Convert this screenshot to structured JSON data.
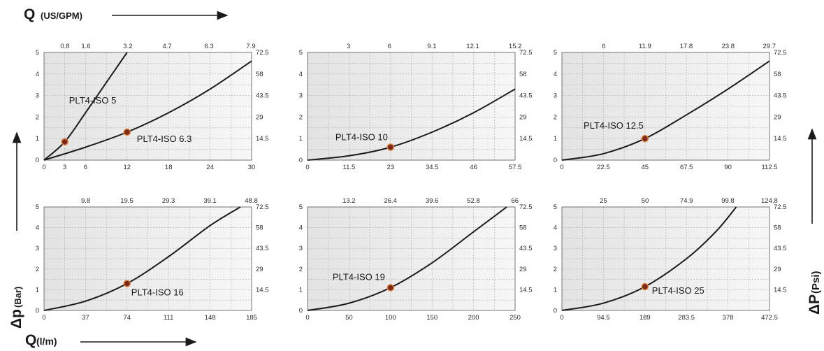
{
  "header": {
    "top_axis_label": "Q",
    "top_axis_unit": "(US/GPM)",
    "bottom_axis_label": "Q",
    "bottom_axis_unit": "(l/m)",
    "left_axis_label": "Δp",
    "left_axis_unit": "(Bar)",
    "right_axis_label": "ΔP",
    "right_axis_unit": "(Psi)"
  },
  "colors": {
    "curve": "#1b1b1b",
    "marker_fill": "#7a2a1a",
    "marker_ring": "#e0813a",
    "panel_shade": "#ececec"
  },
  "chart_data": [
    {
      "type": "line",
      "y_ticks": [
        "0",
        "1",
        "2",
        "3",
        "4",
        "5"
      ],
      "y2_ticks": [
        "14.5",
        "29",
        "43.5",
        "58",
        "72.5"
      ],
      "x_ticks": [
        "0",
        "3",
        "6",
        "12",
        "18",
        "24",
        "30"
      ],
      "x2_ticks": [
        "0.8",
        "1.6",
        "3.2",
        "4.7",
        "6.3",
        "7.9"
      ],
      "xlim": [
        0,
        30
      ],
      "ylim": [
        0,
        5
      ],
      "series": [
        {
          "name": "PLT4-ISO 5",
          "x": [
            0,
            3,
            6,
            9,
            12
          ],
          "y": [
            0,
            0.85,
            2.2,
            3.6,
            5.0
          ],
          "marker": {
            "x": 3,
            "y": 0.85
          }
        },
        {
          "name": "PLT4-ISO 6.3",
          "x": [
            0,
            6,
            12,
            18,
            24,
            30
          ],
          "y": [
            0,
            0.6,
            1.3,
            2.2,
            3.3,
            4.6
          ],
          "marker": {
            "x": 12,
            "y": 1.3
          }
        }
      ]
    },
    {
      "type": "line",
      "y_ticks": [
        "0",
        "1",
        "2",
        "3",
        "4",
        "5"
      ],
      "y2_ticks": [
        "14.5",
        "29",
        "43.5",
        "58",
        "72.5"
      ],
      "x_ticks": [
        "0",
        "11.5",
        "23",
        "34.5",
        "46",
        "57.5"
      ],
      "x2_ticks": [
        "3",
        "6",
        "9.1",
        "12.1",
        "15.2"
      ],
      "xlim": [
        0,
        57.5
      ],
      "ylim": [
        0,
        5
      ],
      "series": [
        {
          "name": "PLT4-ISO 10",
          "x": [
            0,
            11.5,
            23,
            34.5,
            46,
            57.5
          ],
          "y": [
            0,
            0.2,
            0.6,
            1.3,
            2.2,
            3.3
          ],
          "marker": {
            "x": 23,
            "y": 0.6
          }
        }
      ]
    },
    {
      "type": "line",
      "y_ticks": [
        "0",
        "1",
        "2",
        "3",
        "4",
        "5"
      ],
      "y2_ticks": [
        "14.5",
        "29",
        "43.5",
        "58",
        "72.5"
      ],
      "x_ticks": [
        "0",
        "22.5",
        "45",
        "67.5",
        "90",
        "112.5"
      ],
      "x2_ticks": [
        "6",
        "11.9",
        "17.8",
        "23.8",
        "29.7"
      ],
      "xlim": [
        0,
        112.5
      ],
      "ylim": [
        0,
        5
      ],
      "series": [
        {
          "name": "PLT4-ISO 12.5",
          "x": [
            0,
            22.5,
            45,
            67.5,
            90,
            112.5
          ],
          "y": [
            0,
            0.3,
            1.0,
            2.1,
            3.3,
            4.6
          ],
          "marker": {
            "x": 45,
            "y": 1.0
          }
        }
      ]
    },
    {
      "type": "line",
      "y_ticks": [
        "0",
        "1",
        "2",
        "3",
        "4",
        "5"
      ],
      "y2_ticks": [
        "14.5",
        "29",
        "43.5",
        "58",
        "72.5"
      ],
      "x_ticks": [
        "0",
        "37",
        "74",
        "111",
        "148",
        "185"
      ],
      "x2_ticks": [
        "9.8",
        "19.5",
        "29.3",
        "39.1",
        "48.8"
      ],
      "xlim": [
        0,
        185
      ],
      "ylim": [
        0,
        5
      ],
      "series": [
        {
          "name": "PLT4-ISO 16",
          "x": [
            0,
            37,
            74,
            111,
            148,
            175
          ],
          "y": [
            0,
            0.45,
            1.3,
            2.6,
            4.1,
            5.0
          ],
          "marker": {
            "x": 74,
            "y": 1.3
          }
        }
      ]
    },
    {
      "type": "line",
      "y_ticks": [
        "0",
        "1",
        "2",
        "3",
        "4",
        "5"
      ],
      "y2_ticks": [
        "14.5",
        "29",
        "43.5",
        "58",
        "72.5"
      ],
      "x_ticks": [
        "0",
        "50",
        "100",
        "150",
        "200",
        "250"
      ],
      "x2_ticks": [
        "13.2",
        "26.4",
        "39.6",
        "52.8",
        "66"
      ],
      "xlim": [
        0,
        250
      ],
      "ylim": [
        0,
        5
      ],
      "series": [
        {
          "name": "PLT4-ISO 19",
          "x": [
            0,
            50,
            100,
            150,
            200,
            240
          ],
          "y": [
            0,
            0.35,
            1.1,
            2.3,
            3.8,
            5.0
          ],
          "marker": {
            "x": 100,
            "y": 1.1
          }
        }
      ]
    },
    {
      "type": "line",
      "y_ticks": [
        "0",
        "1",
        "2",
        "3",
        "4",
        "5"
      ],
      "y2_ticks": [
        "14.5",
        "29",
        "43.5",
        "58",
        "72.5"
      ],
      "x_ticks": [
        "0",
        "94.5",
        "189",
        "283.5",
        "378",
        "472.5"
      ],
      "x2_ticks": [
        "25",
        "50",
        "74.9",
        "99.8",
        "124.8"
      ],
      "xlim": [
        0,
        472.5
      ],
      "ylim": [
        0,
        5
      ],
      "series": [
        {
          "name": "PLT4-ISO 25",
          "x": [
            0,
            94.5,
            189,
            283.5,
            350,
            397
          ],
          "y": [
            0,
            0.35,
            1.15,
            2.5,
            3.8,
            5.0
          ],
          "marker": {
            "x": 189,
            "y": 1.15
          }
        }
      ]
    }
  ]
}
